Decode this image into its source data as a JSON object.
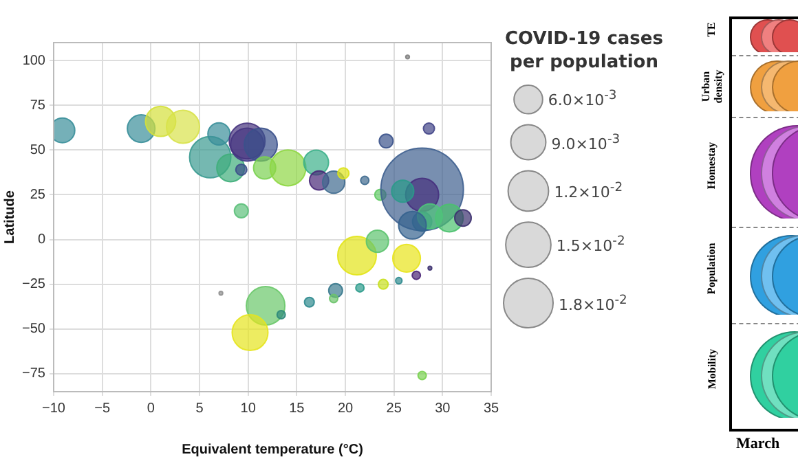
{
  "chart_data": [
    {
      "type": "bubble",
      "xlabel": "Equivalent temperature (°C)",
      "ylabel": "Latitude",
      "legend_title": "COVID-19 cases per population",
      "xlim": [
        -10,
        35
      ],
      "ylim": [
        -85,
        110
      ],
      "xticks": [
        -10,
        -5,
        0,
        5,
        10,
        15,
        20,
        25,
        30,
        35
      ],
      "yticks": [
        -75,
        -50,
        -25,
        0,
        25,
        50,
        75,
        100
      ],
      "grid": true,
      "size_legend": [
        {
          "value": 0.006,
          "label": "6.0×10$^{-3}$"
        },
        {
          "value": 0.009,
          "label": "9.0×10$^{-3}$"
        },
        {
          "value": 0.012,
          "label": "1.2×10$^{-2}$"
        },
        {
          "value": 0.015,
          "label": "1.5×10$^{-2}$"
        },
        {
          "value": 0.018,
          "label": "1.8×10$^{-2}$"
        }
      ],
      "series": [
        {
          "x": [
            -9.1,
            -1,
            1,
            3.3,
            6.1,
            7,
            8.2,
            9.3,
            9.9,
            9.9,
            11.3,
            9.3,
            11.7,
            14.1,
            17,
            17.3,
            18.8,
            19.8,
            22,
            23.6,
            24.2,
            28.6,
            26.4,
            27.9,
            27.9,
            25.9,
            30.7,
            32.1,
            27.9,
            28.7,
            26.9,
            21.2,
            23.3,
            26.3,
            27.3,
            25.5,
            23.9,
            21.5,
            19,
            18.8,
            16.3,
            11.8,
            13.4,
            10.2,
            27.9,
            28.7,
            7.2
          ],
          "values": [
            61,
            62,
            66,
            63,
            46,
            59,
            40,
            16,
            53,
            55,
            53,
            39,
            40,
            40,
            43,
            33,
            32,
            37,
            33,
            25,
            55,
            62,
            102,
            28,
            25,
            27,
            12,
            12,
            10,
            13,
            8,
            -9,
            -1,
            -10.5,
            -20,
            -23,
            -25,
            -27,
            -28.5,
            -33,
            -35,
            -37,
            -42,
            -52,
            -76,
            -16,
            -30
          ],
          "sizes": [
            0.0045,
            0.0056,
            0.0067,
            0.008,
            0.0125,
            0.0036,
            0.0056,
            0.0014,
            0.008,
            0.0094,
            0.008,
            0.0009,
            0.0036,
            0.0094,
            0.0045,
            0.0027,
            0.0036,
            0.0009,
            0.0005,
            0.0009,
            0.0014,
            0.0009,
            0.0001,
            0.05,
            0.008,
            0.0036,
            0.0056,
            0.002,
            0.0027,
            0.0045,
            0.0056,
            0.0109,
            0.0036,
            0.0056,
            0.0005,
            0.0003,
            0.0007,
            0.0005,
            0.0014,
            0.0005,
            0.0007,
            0.0109,
            0.0005,
            0.0094,
            0.0005,
            0.0001,
            0.0001
          ],
          "colors": [
            "#3a8f9a",
            "#3a8f9a",
            "#d4e03a",
            "#d8e24a",
            "#3a9a90",
            "#3a8f9a",
            "#3fae7a",
            "#5cc07a",
            "#453a87",
            "#46337e",
            "#3b518b",
            "#3c4f8a",
            "#7ad151",
            "#8fd744",
            "#3cb08a",
            "#482878",
            "#3e6a8e",
            "#dde318",
            "#3e6a8e",
            "#5ec962",
            "#3b528b",
            "#414487",
            "#808080",
            "#3e5f8f",
            "#46307e",
            "#2a9a8a",
            "#4ac16d",
            "#3b2f6e",
            "#2f6b8e",
            "#4fc47a",
            "#35628e",
            "#e2e418",
            "#5cc36e",
            "#e8e419",
            "#482474",
            "#2c8a8e",
            "#c8e020",
            "#2a9a8a",
            "#3a7a8e",
            "#6cc36a",
            "#2e8a8e",
            "#6ac86a",
            "#2e8a7a",
            "#e6e41e",
            "#7ad151",
            "#3b2f6e",
            "#909090"
          ]
        }
      ]
    },
    {
      "type": "other",
      "categories": [
        "TE",
        "Urban density",
        "Homestay",
        "Population",
        "Mobility"
      ],
      "xlabel": "March"
    }
  ]
}
